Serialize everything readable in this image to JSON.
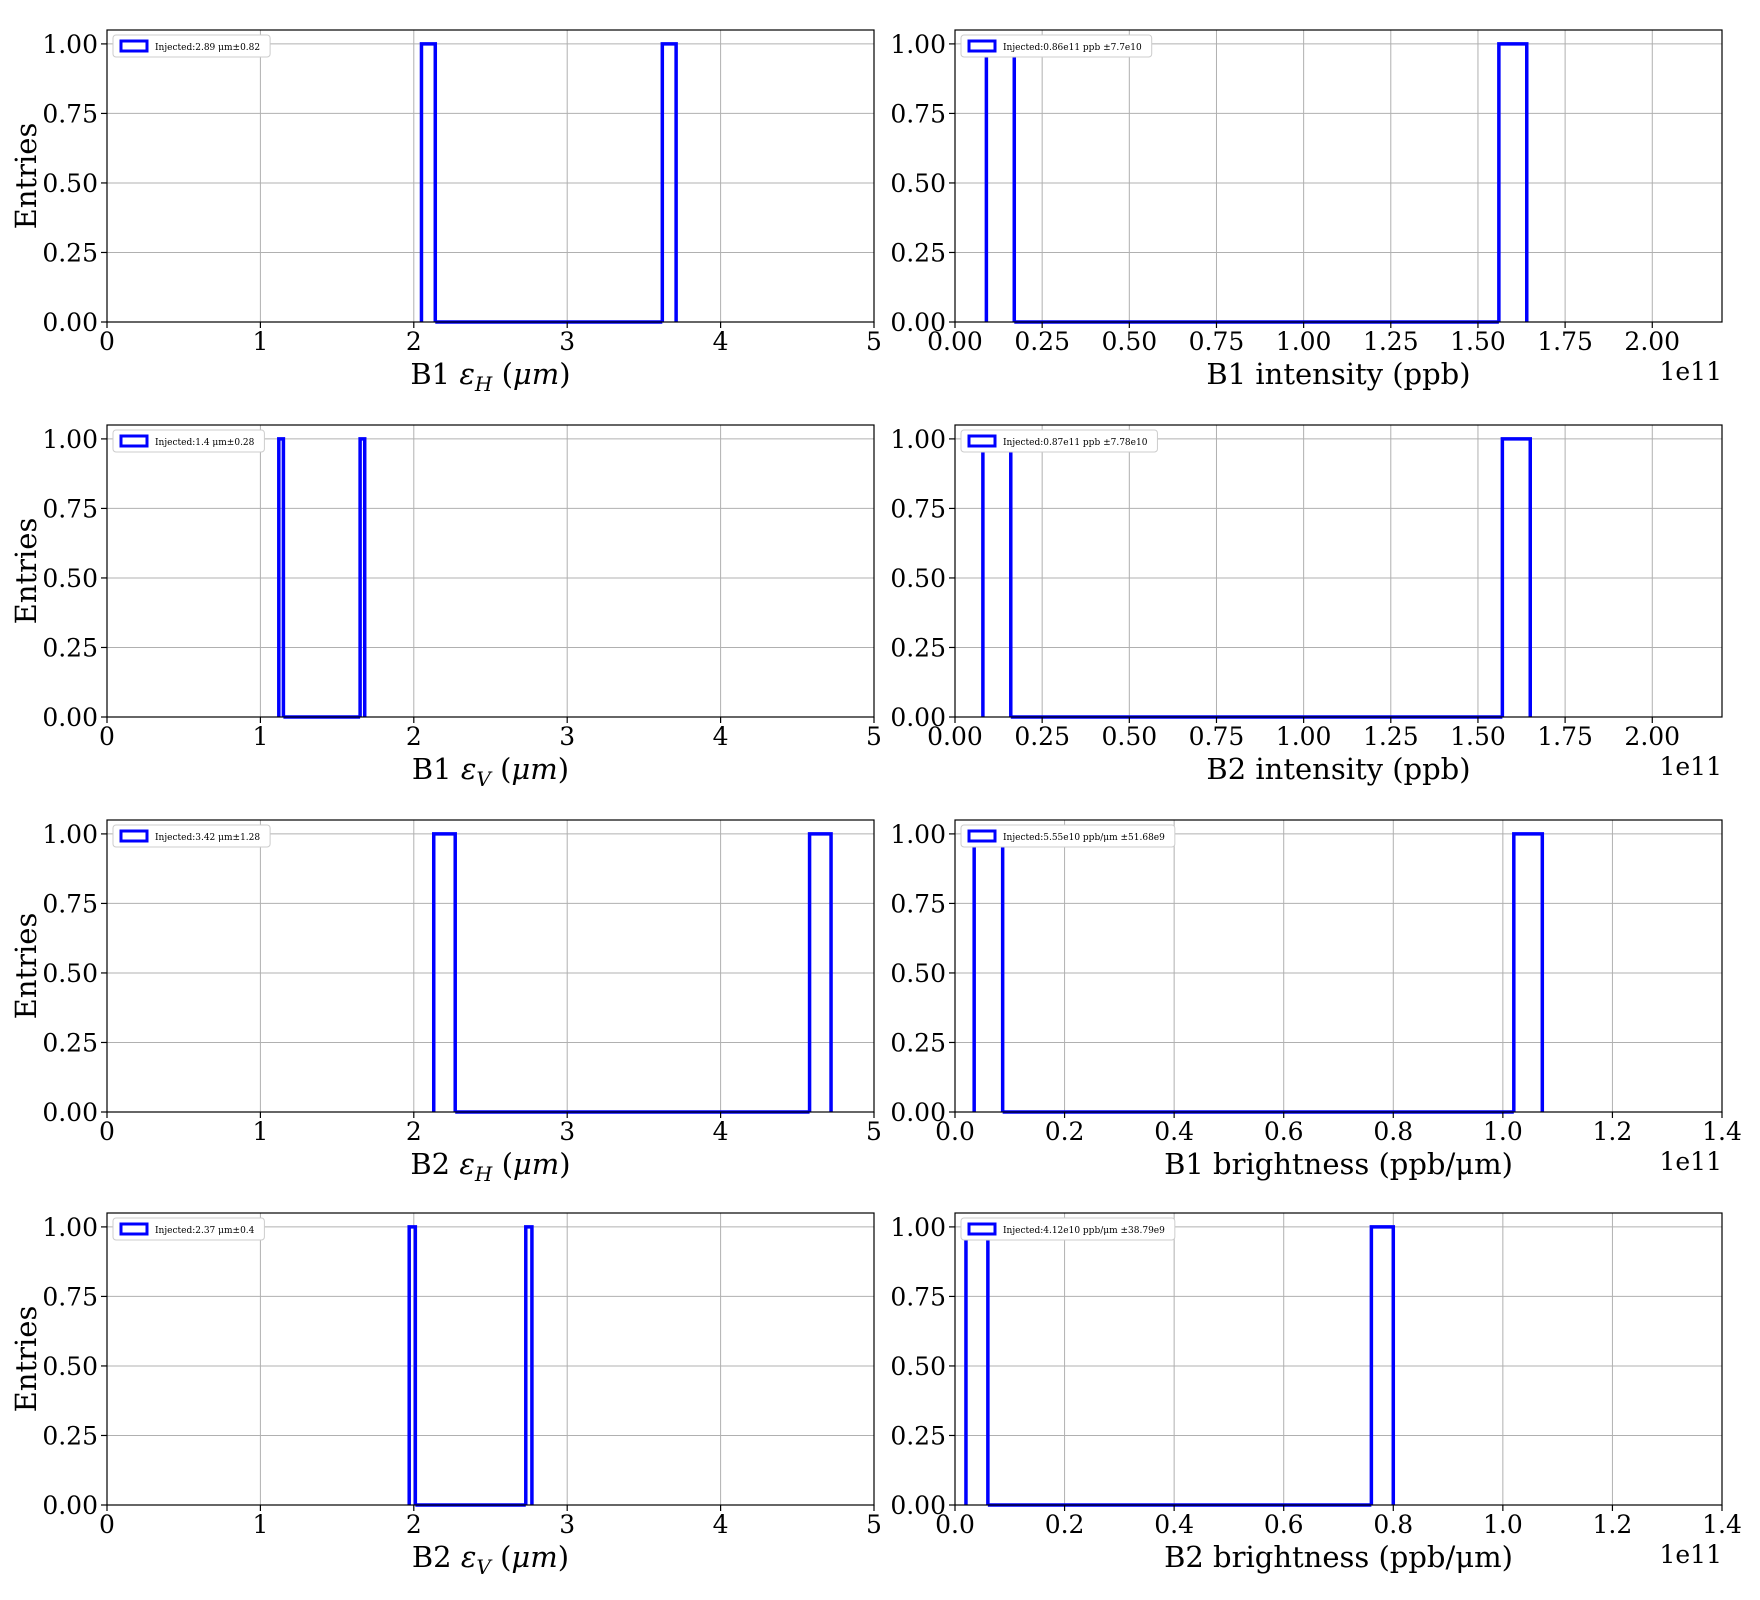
{
  "figure": {
    "ylabel": "Entries",
    "y_ticks": [
      "0.00",
      "0.25",
      "0.50",
      "0.75",
      "1.00"
    ]
  },
  "chart_data": [
    {
      "type": "histogram",
      "xlabel": "B1 εH (μm)",
      "xlabel_parts": {
        "prefix": "B1 ",
        "sym": "ε",
        "sub": "H",
        "unit_open": " (",
        "mu": "μ",
        "unit_rest": "m",
        "unit_close": ")"
      },
      "ylabel": "Entries",
      "xlim": [
        0,
        5
      ],
      "ylim": [
        0,
        1.05
      ],
      "x_ticks": [
        0,
        1,
        2,
        3,
        4,
        5
      ],
      "x_tick_labels": [
        "0",
        "1",
        "2",
        "3",
        "4",
        "5"
      ],
      "offset": "",
      "legend": "Injected:2.89 μm±0.82",
      "bins": [
        [
          2.05,
          2.14
        ],
        [
          3.62,
          3.71
        ]
      ],
      "counts": [
        1,
        1
      ],
      "grid": true,
      "legend_loc": "upper left"
    },
    {
      "type": "histogram",
      "xlabel": "B1 intensity (ppb)",
      "ylabel": "",
      "xlim": [
        0,
        2.2
      ],
      "ylim": [
        0,
        1.05
      ],
      "x_ticks": [
        0,
        0.25,
        0.5,
        0.75,
        1.0,
        1.25,
        1.5,
        1.75,
        2.0
      ],
      "x_tick_labels": [
        "0.00",
        "0.25",
        "0.50",
        "0.75",
        "1.00",
        "1.25",
        "1.50",
        "1.75",
        "2.00"
      ],
      "offset": "1e11",
      "legend": "Injected:0.86e11 ppb ±7.7e10",
      "bins": [
        [
          0.09,
          0.17
        ],
        [
          1.56,
          1.64
        ]
      ],
      "counts": [
        1,
        1
      ],
      "grid": true,
      "legend_loc": "upper left"
    },
    {
      "type": "histogram",
      "xlabel": "B1 εV (μm)",
      "xlabel_parts": {
        "prefix": "B1 ",
        "sym": "ε",
        "sub": "V",
        "unit_open": " (",
        "mu": "μ",
        "unit_rest": "m",
        "unit_close": ")"
      },
      "ylabel": "Entries",
      "xlim": [
        0,
        5
      ],
      "ylim": [
        0,
        1.05
      ],
      "x_ticks": [
        0,
        1,
        2,
        3,
        4,
        5
      ],
      "x_tick_labels": [
        "0",
        "1",
        "2",
        "3",
        "4",
        "5"
      ],
      "offset": "",
      "legend": "Injected:1.4 μm±0.28",
      "bins": [
        [
          1.12,
          1.15
        ],
        [
          1.65,
          1.68
        ]
      ],
      "counts": [
        1,
        1
      ],
      "grid": true,
      "legend_loc": "upper left"
    },
    {
      "type": "histogram",
      "xlabel": "B2 intensity (ppb)",
      "ylabel": "",
      "xlim": [
        0,
        2.2
      ],
      "ylim": [
        0,
        1.05
      ],
      "x_ticks": [
        0,
        0.25,
        0.5,
        0.75,
        1.0,
        1.25,
        1.5,
        1.75,
        2.0
      ],
      "x_tick_labels": [
        "0.00",
        "0.25",
        "0.50",
        "0.75",
        "1.00",
        "1.25",
        "1.50",
        "1.75",
        "2.00"
      ],
      "offset": "1e11",
      "legend": "Injected:0.87e11 ppb ±7.78e10",
      "bins": [
        [
          0.08,
          0.16
        ],
        [
          1.57,
          1.65
        ]
      ],
      "counts": [
        1,
        1
      ],
      "grid": true,
      "legend_loc": "upper left"
    },
    {
      "type": "histogram",
      "xlabel": "B2 εH (μm)",
      "xlabel_parts": {
        "prefix": "B2 ",
        "sym": "ε",
        "sub": "H",
        "unit_open": " (",
        "mu": "μ",
        "unit_rest": "m",
        "unit_close": ")"
      },
      "ylabel": "Entries",
      "xlim": [
        0,
        5
      ],
      "ylim": [
        0,
        1.05
      ],
      "x_ticks": [
        0,
        1,
        2,
        3,
        4,
        5
      ],
      "x_tick_labels": [
        "0",
        "1",
        "2",
        "3",
        "4",
        "5"
      ],
      "offset": "",
      "legend": "Injected:3.42 μm±1.28",
      "bins": [
        [
          2.13,
          2.27
        ],
        [
          4.58,
          4.72
        ]
      ],
      "counts": [
        1,
        1
      ],
      "grid": true,
      "legend_loc": "upper left"
    },
    {
      "type": "histogram",
      "xlabel": "B1 brightness (ppb/μm)",
      "ylabel": "",
      "xlim": [
        0,
        1.4
      ],
      "ylim": [
        0,
        1.05
      ],
      "x_ticks": [
        0,
        0.2,
        0.4,
        0.6,
        0.8,
        1.0,
        1.2,
        1.4
      ],
      "x_tick_labels": [
        "0.0",
        "0.2",
        "0.4",
        "0.6",
        "0.8",
        "1.0",
        "1.2",
        "1.4"
      ],
      "offset": "1e11",
      "legend": "Injected:5.55e10 ppb/μm ±51.68e9",
      "bins": [
        [
          0.035,
          0.087
        ],
        [
          1.02,
          1.072
        ]
      ],
      "counts": [
        1,
        1
      ],
      "grid": true,
      "legend_loc": "upper left"
    },
    {
      "type": "histogram",
      "xlabel": "B2 εV (μm)",
      "xlabel_parts": {
        "prefix": "B2 ",
        "sym": "ε",
        "sub": "V",
        "unit_open": " (",
        "mu": "μ",
        "unit_rest": "m",
        "unit_close": ")"
      },
      "ylabel": "Entries",
      "xlim": [
        0,
        5
      ],
      "ylim": [
        0,
        1.05
      ],
      "x_ticks": [
        0,
        1,
        2,
        3,
        4,
        5
      ],
      "x_tick_labels": [
        "0",
        "1",
        "2",
        "3",
        "4",
        "5"
      ],
      "offset": "",
      "legend": "Injected:2.37 μm±0.4",
      "bins": [
        [
          1.97,
          2.01
        ],
        [
          2.73,
          2.77
        ]
      ],
      "counts": [
        1,
        1
      ],
      "grid": true,
      "legend_loc": "upper left"
    },
    {
      "type": "histogram",
      "xlabel": "B2 brightness (ppb/μm)",
      "ylabel": "",
      "xlim": [
        0,
        1.4
      ],
      "ylim": [
        0,
        1.05
      ],
      "x_ticks": [
        0,
        0.2,
        0.4,
        0.6,
        0.8,
        1.0,
        1.2,
        1.4
      ],
      "x_tick_labels": [
        "0.0",
        "0.2",
        "0.4",
        "0.6",
        "0.8",
        "1.0",
        "1.2",
        "1.4"
      ],
      "offset": "1e11",
      "legend": "Injected:4.12e10 ppb/μm ±38.79e9",
      "bins": [
        [
          0.02,
          0.06
        ],
        [
          0.76,
          0.8
        ]
      ],
      "counts": [
        1,
        1
      ],
      "grid": true,
      "legend_loc": "upper left"
    }
  ]
}
